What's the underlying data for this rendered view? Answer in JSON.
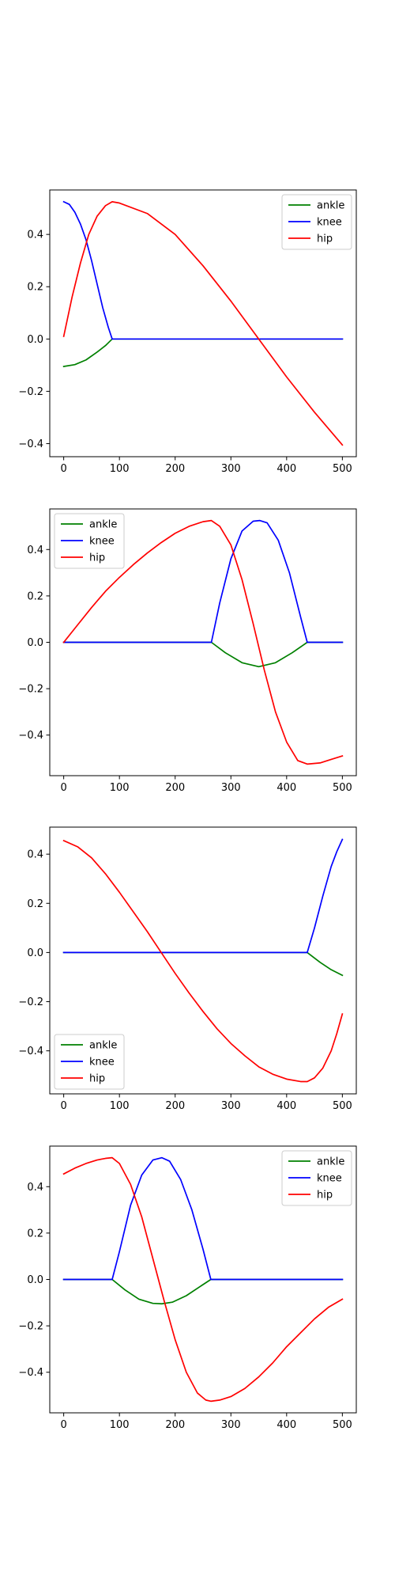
{
  "chart_data": [
    {
      "type": "line",
      "xlim": [
        -25,
        525
      ],
      "ylim": [
        -0.45,
        0.57
      ],
      "xticks": [
        0,
        100,
        200,
        300,
        400,
        500
      ],
      "yticks": [
        -0.4,
        -0.2,
        0.0,
        0.2,
        0.4
      ],
      "xtick_labels": [
        "0",
        "100",
        "200",
        "300",
        "400",
        "500"
      ],
      "ytick_labels": [
        "−0.4",
        "−0.2",
        "0.0",
        "0.2",
        "0.4"
      ],
      "legend": "upper right",
      "grid": false,
      "series": [
        {
          "name": "ankle",
          "color": "#008000",
          "x": [
            0,
            20,
            40,
            60,
            75,
            87,
            100,
            200,
            300,
            400,
            500
          ],
          "y": [
            -0.105,
            -0.098,
            -0.08,
            -0.05,
            -0.025,
            0.0,
            0.0,
            0.0,
            0.0,
            0.0,
            0.0
          ]
        },
        {
          "name": "knee",
          "color": "#0000ff",
          "x": [
            0,
            10,
            20,
            30,
            40,
            50,
            60,
            70,
            80,
            87,
            100,
            200,
            300,
            400,
            500
          ],
          "y": [
            0.525,
            0.515,
            0.485,
            0.44,
            0.38,
            0.3,
            0.21,
            0.12,
            0.045,
            0.0,
            0.0,
            0.0,
            0.0,
            0.0,
            0.0
          ]
        },
        {
          "name": "hip",
          "color": "#ff0000",
          "x": [
            0,
            15,
            30,
            45,
            60,
            75,
            87,
            100,
            150,
            200,
            250,
            300,
            350,
            400,
            450,
            500
          ],
          "y": [
            0.01,
            0.16,
            0.29,
            0.4,
            0.47,
            0.51,
            0.525,
            0.52,
            0.48,
            0.4,
            0.28,
            0.145,
            0.0,
            -0.145,
            -0.28,
            -0.405
          ]
        }
      ]
    },
    {
      "type": "line",
      "xlim": [
        -25,
        525
      ],
      "ylim": [
        -0.575,
        0.575
      ],
      "xticks": [
        0,
        100,
        200,
        300,
        400,
        500
      ],
      "yticks": [
        -0.4,
        -0.2,
        0.0,
        0.2,
        0.4
      ],
      "xtick_labels": [
        "0",
        "100",
        "200",
        "300",
        "400",
        "500"
      ],
      "ytick_labels": [
        "−0.4",
        "−0.2",
        "0.0",
        "0.2",
        "0.4"
      ],
      "legend": "upper left",
      "grid": false,
      "series": [
        {
          "name": "ankle",
          "color": "#008000",
          "x": [
            0,
            100,
            200,
            265,
            290,
            320,
            350,
            380,
            410,
            437,
            470,
            500
          ],
          "y": [
            0.0,
            0.0,
            0.0,
            0.0,
            -0.045,
            -0.088,
            -0.105,
            -0.088,
            -0.045,
            0.0,
            0.0,
            0.0
          ]
        },
        {
          "name": "knee",
          "color": "#0000ff",
          "x": [
            0,
            100,
            200,
            265,
            280,
            300,
            320,
            340,
            352,
            365,
            385,
            405,
            425,
            437,
            470,
            500
          ],
          "y": [
            0.0,
            0.0,
            0.0,
            0.0,
            0.17,
            0.36,
            0.48,
            0.522,
            0.525,
            0.515,
            0.44,
            0.3,
            0.11,
            0.0,
            0.0,
            0.0
          ]
        },
        {
          "name": "hip",
          "color": "#ff0000",
          "x": [
            0,
            25,
            50,
            75,
            100,
            125,
            150,
            175,
            200,
            225,
            250,
            265,
            280,
            300,
            320,
            340,
            360,
            380,
            400,
            420,
            437,
            460,
            480,
            500
          ],
          "y": [
            0.0,
            0.075,
            0.15,
            0.22,
            0.28,
            0.335,
            0.385,
            0.43,
            0.47,
            0.5,
            0.52,
            0.525,
            0.5,
            0.42,
            0.27,
            0.08,
            -0.12,
            -0.3,
            -0.43,
            -0.51,
            -0.525,
            -0.52,
            -0.505,
            -0.49
          ]
        }
      ]
    },
    {
      "type": "line",
      "xlim": [
        -25,
        525
      ],
      "ylim": [
        -0.575,
        0.51
      ],
      "xticks": [
        0,
        100,
        200,
        300,
        400,
        500
      ],
      "yticks": [
        -0.4,
        -0.2,
        0.0,
        0.2,
        0.4
      ],
      "xtick_labels": [
        "0",
        "100",
        "200",
        "300",
        "400",
        "500"
      ],
      "ytick_labels": [
        "−0.4",
        "−0.2",
        "0.0",
        "0.2",
        "0.4"
      ],
      "legend": "lower left",
      "grid": false,
      "series": [
        {
          "name": "ankle",
          "color": "#008000",
          "x": [
            0,
            100,
            200,
            300,
            400,
            437,
            460,
            480,
            500
          ],
          "y": [
            0.0,
            0.0,
            0.0,
            0.0,
            0.0,
            0.0,
            -0.04,
            -0.07,
            -0.093
          ]
        },
        {
          "name": "knee",
          "color": "#0000ff",
          "x": [
            0,
            100,
            200,
            300,
            400,
            437,
            450,
            465,
            480,
            490,
            500
          ],
          "y": [
            0.0,
            0.0,
            0.0,
            0.0,
            0.0,
            0.0,
            0.1,
            0.23,
            0.35,
            0.41,
            0.46
          ]
        },
        {
          "name": "hip",
          "color": "#ff0000",
          "x": [
            0,
            25,
            50,
            75,
            100,
            125,
            150,
            175,
            200,
            225,
            250,
            275,
            300,
            325,
            350,
            375,
            400,
            425,
            437,
            450,
            465,
            480,
            490,
            500
          ],
          "y": [
            0.455,
            0.43,
            0.385,
            0.32,
            0.245,
            0.165,
            0.085,
            0.0,
            -0.085,
            -0.165,
            -0.24,
            -0.31,
            -0.37,
            -0.42,
            -0.465,
            -0.495,
            -0.515,
            -0.525,
            -0.525,
            -0.51,
            -0.47,
            -0.4,
            -0.33,
            -0.25
          ]
        }
      ]
    },
    {
      "type": "line",
      "xlim": [
        -25,
        525
      ],
      "ylim": [
        -0.575,
        0.575
      ],
      "xticks": [
        0,
        100,
        200,
        300,
        400,
        500
      ],
      "yticks": [
        -0.4,
        -0.2,
        0.0,
        0.2,
        0.4
      ],
      "xtick_labels": [
        "0",
        "100",
        "200",
        "300",
        "400",
        "500"
      ],
      "ytick_labels": [
        "−0.4",
        "−0.2",
        "0.0",
        "0.2",
        "0.4"
      ],
      "legend": "upper right",
      "grid": false,
      "series": [
        {
          "name": "ankle",
          "color": "#008000",
          "x": [
            0,
            50,
            87,
            110,
            135,
            160,
            176,
            195,
            220,
            245,
            264,
            300,
            400,
            500
          ],
          "y": [
            0.0,
            0.0,
            0.0,
            -0.045,
            -0.085,
            -0.103,
            -0.105,
            -0.098,
            -0.07,
            -0.03,
            0.0,
            0.0,
            0.0,
            0.0
          ]
        },
        {
          "name": "knee",
          "color": "#0000ff",
          "x": [
            0,
            50,
            87,
            100,
            120,
            140,
            160,
            176,
            190,
            210,
            230,
            250,
            264,
            300,
            400,
            500
          ],
          "y": [
            0.0,
            0.0,
            0.0,
            0.12,
            0.32,
            0.45,
            0.515,
            0.525,
            0.51,
            0.43,
            0.3,
            0.13,
            0.0,
            0.0,
            0.0,
            0.0
          ]
        },
        {
          "name": "hip",
          "color": "#ff0000",
          "x": [
            0,
            20,
            40,
            60,
            75,
            87,
            100,
            120,
            140,
            160,
            180,
            200,
            220,
            240,
            255,
            264,
            280,
            300,
            325,
            350,
            375,
            400,
            425,
            450,
            475,
            500
          ],
          "y": [
            0.455,
            0.48,
            0.5,
            0.515,
            0.522,
            0.525,
            0.5,
            0.41,
            0.27,
            0.09,
            -0.09,
            -0.26,
            -0.4,
            -0.49,
            -0.52,
            -0.525,
            -0.52,
            -0.505,
            -0.47,
            -0.42,
            -0.36,
            -0.29,
            -0.23,
            -0.17,
            -0.12,
            -0.085
          ]
        }
      ]
    }
  ]
}
